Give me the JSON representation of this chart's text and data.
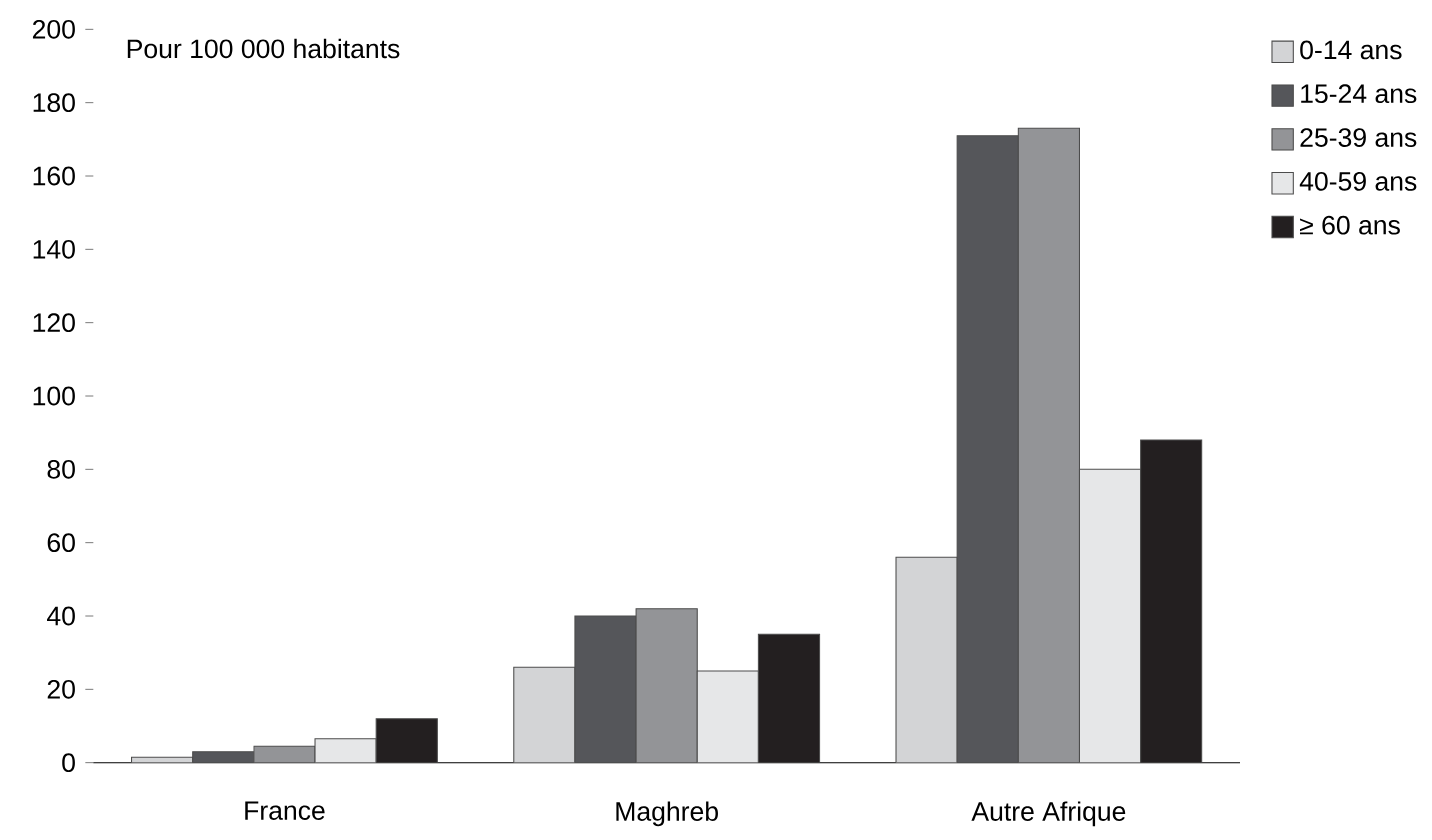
{
  "chart_data": {
    "type": "bar",
    "annotations": [
      "Pour 100 000 habitants"
    ],
    "categories": [
      "France",
      "Maghreb",
      "Autre Afrique"
    ],
    "series": [
      {
        "name": "0-14 ans",
        "color": "#d3d4d6",
        "values": [
          1.5,
          26,
          56
        ]
      },
      {
        "name": "15-24 ans",
        "color": "#55565a",
        "values": [
          3,
          40,
          171
        ]
      },
      {
        "name": "25-39 ans",
        "color": "#939497",
        "values": [
          4.5,
          42,
          173
        ]
      },
      {
        "name": "40-59 ans",
        "color": "#e6e7e8",
        "values": [
          6.5,
          25,
          80
        ]
      },
      {
        "name": "≥ 60 ans",
        "color": "#231f20",
        "values": [
          12,
          35,
          88
        ]
      }
    ],
    "ylim": [
      0,
      200
    ],
    "yticks": [
      0,
      20,
      40,
      60,
      80,
      100,
      120,
      140,
      160,
      180,
      200
    ],
    "grid": false,
    "legend": "top right"
  }
}
